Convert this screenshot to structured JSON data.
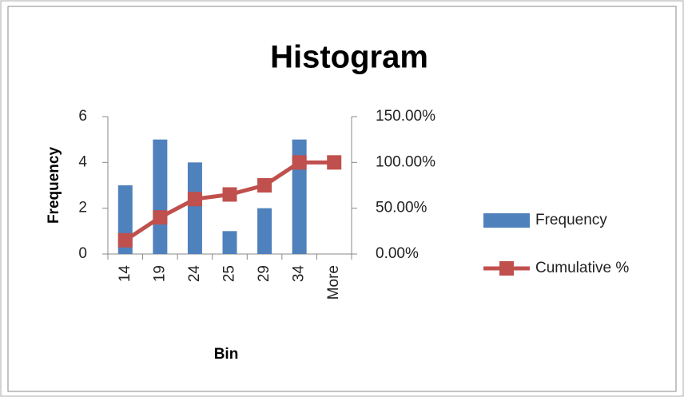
{
  "chart_data": {
    "type": "bar",
    "title": "Histogram",
    "x_label": "Bin",
    "y_label": "Frequency",
    "categories": [
      "14",
      "19",
      "24",
      "25",
      "29",
      "34",
      "More"
    ],
    "series": [
      {
        "name": "Frequency",
        "type": "bar",
        "color": "#4f81bd",
        "values": [
          3,
          5,
          4,
          1,
          2,
          5,
          0
        ]
      },
      {
        "name": "Cumulative %",
        "type": "line",
        "axis": "y2",
        "color": "#c0504d",
        "values": [
          15,
          40,
          60,
          65,
          75,
          100,
          100
        ]
      }
    ],
    "ylim": [
      0,
      6
    ],
    "yticks": [
      0,
      2,
      4,
      6
    ],
    "y2lim": [
      0,
      150
    ],
    "y2ticks": [
      {
        "value": 0,
        "label": "0.00%"
      },
      {
        "value": 50,
        "label": "50.00%"
      },
      {
        "value": 100,
        "label": "100.00%"
      },
      {
        "value": 150,
        "label": "150.00%"
      }
    ],
    "grid": false,
    "legend": "right"
  }
}
